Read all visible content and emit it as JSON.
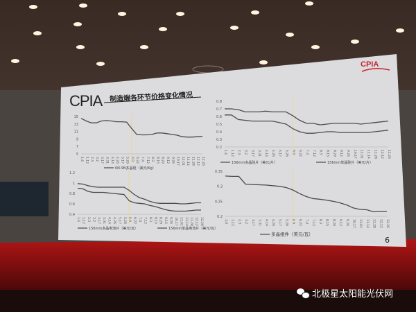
{
  "slide": {
    "brand": "CPIA",
    "title": "制造端各环节价格变化情况",
    "logo_text": "CPIA",
    "page_number": "6"
  },
  "watermark": {
    "icon": "wechat-icon",
    "text": "北极星太阳能光伏网"
  },
  "colors": {
    "line": "#4a4a4a",
    "marker_line": "#e8d48a",
    "screen": "#dcdcde",
    "stage": "#8a1010"
  },
  "chart_data": [
    {
      "type": "line",
      "categories": [
        "1.6",
        "1.12",
        "2.3",
        "3.2",
        "3.17",
        "3.31",
        "4.14",
        "4.26",
        "5.17",
        "5.26",
        "6.9",
        "6.22",
        "7.4",
        "7.12",
        "8.3",
        "8.15",
        "8.29",
        "9.12",
        "9.26",
        "10.17",
        "11.01",
        "11.14",
        "11.28",
        "12.12",
        "12.26"
      ],
      "yticks": [
        5,
        7,
        9,
        11,
        13,
        15
      ],
      "ylim": [
        5,
        15
      ],
      "series": [
        {
          "name": "6N-9N多晶硅（美元/Kg）",
          "values": [
            14.5,
            13.8,
            13.3,
            13.3,
            13.8,
            13.9,
            13.8,
            13.6,
            13.6,
            13.5,
            11.8,
            10.2,
            10.1,
            10.1,
            10.2,
            10.6,
            10.6,
            10.4,
            10.2,
            10.0,
            9.6,
            9.5,
            9.5,
            9.6,
            9.7
          ]
        }
      ]
    },
    {
      "type": "line",
      "categories": [
        "1.6",
        "1.12",
        "2.3",
        "3.2",
        "3.17",
        "3.31",
        "4.14",
        "4.26",
        "5.17",
        "5.26",
        "6.9",
        "6.22",
        "7.4",
        "7.12",
        "8.3",
        "8.15",
        "8.29",
        "9.12",
        "9.26",
        "10.17",
        "11.01",
        "11.14",
        "11.28",
        "12.12",
        "12.26"
      ],
      "yticks": [
        0.2,
        0.3,
        0.4,
        0.5,
        0.6,
        0.7,
        0.8
      ],
      "ylim": [
        0.2,
        0.8
      ],
      "series": [
        {
          "name": "156mm多晶硅片（美元/片）",
          "values": [
            0.7,
            0.7,
            0.69,
            0.66,
            0.66,
            0.66,
            0.67,
            0.66,
            0.66,
            0.66,
            0.61,
            0.55,
            0.51,
            0.51,
            0.49,
            0.5,
            0.51,
            0.51,
            0.51,
            0.51,
            0.5,
            0.51,
            0.52,
            0.53,
            0.54
          ]
        },
        {
          "name": "156mm单晶硅片（美元/片）",
          "values": [
            0.62,
            0.62,
            0.56,
            0.55,
            0.54,
            0.54,
            0.54,
            0.54,
            0.52,
            0.5,
            0.44,
            0.4,
            0.38,
            0.38,
            0.39,
            0.4,
            0.4,
            0.39,
            0.39,
            0.39,
            0.39,
            0.39,
            0.4,
            0.41,
            0.42
          ]
        }
      ]
    },
    {
      "type": "line",
      "categories": [
        "1.6",
        "1.12",
        "2.3",
        "3.2",
        "3.17",
        "3.31",
        "4.14",
        "4.26",
        "5.17",
        "5.26",
        "6.9",
        "6.22",
        "7.4",
        "7.12",
        "8.3",
        "8.15",
        "8.29",
        "9.12",
        "9.26",
        "10.17",
        "11.01",
        "11.14",
        "11.28",
        "12.12",
        "12.26"
      ],
      "yticks": [
        0.4,
        0.6,
        0.8,
        1,
        1.2
      ],
      "ylim": [
        0.4,
        1.2
      ],
      "series": [
        {
          "name": "156mm多晶电池片（美元/瓦）",
          "values": [
            0.9,
            0.89,
            0.84,
            0.82,
            0.82,
            0.82,
            0.81,
            0.8,
            0.79,
            0.78,
            0.66,
            0.62,
            0.61,
            0.6,
            0.57,
            0.55,
            0.52,
            0.49,
            0.47,
            0.46,
            0.46,
            0.46,
            0.47,
            0.48,
            0.48
          ]
        },
        {
          "name": "156mm单晶电池片（美元/瓦）",
          "values": [
            0.99,
            0.98,
            0.95,
            0.93,
            0.92,
            0.92,
            0.92,
            0.92,
            0.92,
            0.92,
            0.86,
            0.78,
            0.72,
            0.69,
            0.65,
            0.62,
            0.61,
            0.61,
            0.61,
            0.61,
            0.6,
            0.6,
            0.61,
            0.62,
            0.62
          ]
        }
      ]
    },
    {
      "type": "line",
      "categories": [
        "1.6",
        "1.12",
        "2.3",
        "3.2",
        "3.17",
        "3.31",
        "4.14",
        "4.26",
        "5.17",
        "5.26",
        "6.9",
        "6.22",
        "7.4",
        "7.12",
        "8.3",
        "8.15",
        "8.29",
        "9.12",
        "9.26",
        "10.17",
        "11.01",
        "11.14",
        "11.28",
        "12.12",
        "12.26"
      ],
      "yticks": [
        0.2,
        0.25,
        0.3,
        0.35
      ],
      "ylim": [
        0.2,
        0.35
      ],
      "series": [
        {
          "name": "多晶组件（美元/瓦）",
          "values": [
            0.334,
            0.333,
            0.333,
            0.307,
            0.306,
            0.305,
            0.304,
            0.302,
            0.3,
            0.296,
            0.288,
            0.276,
            0.266,
            0.259,
            0.257,
            0.254,
            0.25,
            0.245,
            0.238,
            0.228,
            0.223,
            0.222,
            0.215,
            0.216,
            0.216
          ]
        }
      ]
    }
  ]
}
